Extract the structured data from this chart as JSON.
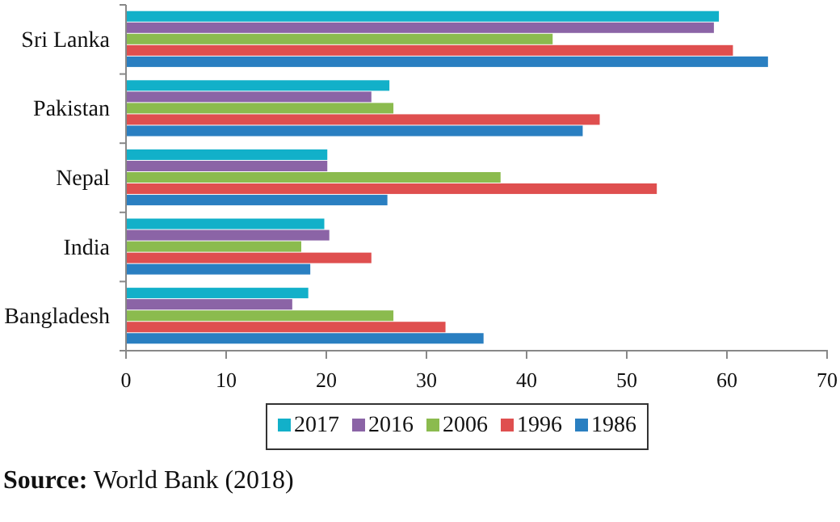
{
  "chart_data": {
    "type": "bar",
    "orientation": "horizontal",
    "categories": [
      "Sri Lanka",
      "Pakistan",
      "Nepal",
      "India",
      "Bangladesh"
    ],
    "series": [
      {
        "name": "2017",
        "color": "#12b0c9",
        "values": [
          59.2,
          26.3,
          20.1,
          19.8,
          18.2
        ]
      },
      {
        "name": "2016",
        "color": "#8b64a6",
        "values": [
          58.7,
          24.5,
          20.1,
          20.3,
          16.6
        ]
      },
      {
        "name": "2006",
        "color": "#8bbb4e",
        "values": [
          42.6,
          26.7,
          37.4,
          17.5,
          26.7
        ]
      },
      {
        "name": "1996",
        "color": "#df4f4f",
        "values": [
          60.6,
          47.3,
          53.0,
          24.5,
          31.9
        ]
      },
      {
        "name": "1986",
        "color": "#2a7fc1",
        "values": [
          64.1,
          45.6,
          26.1,
          18.4,
          35.7
        ]
      }
    ],
    "xlim": [
      0,
      70
    ],
    "xticks": [
      0,
      10,
      20,
      30,
      40,
      50,
      60,
      70
    ],
    "legend": "bottom",
    "annotations": [
      "Source: World Bank (2018)"
    ]
  }
}
